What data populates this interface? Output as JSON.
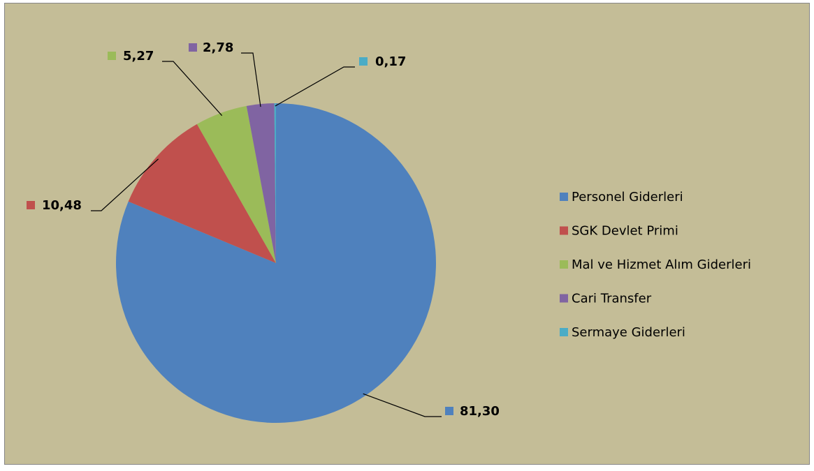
{
  "chart_data": {
    "type": "pie",
    "categories": [
      "Personel Giderleri",
      "SGK Devlet Primi",
      "Mal ve Hizmet Alım Giderleri",
      "Cari Transfer",
      "Sermaye Giderleri"
    ],
    "values": [
      81.3,
      10.48,
      5.27,
      2.78,
      0.17
    ],
    "value_labels": [
      "81,30",
      "10,48",
      "5,27",
      "2,78",
      "0,17"
    ],
    "colors": [
      "#4f81bd",
      "#c0504d",
      "#9bbb59",
      "#8064a2",
      "#4bacc6"
    ],
    "legend": "right"
  }
}
